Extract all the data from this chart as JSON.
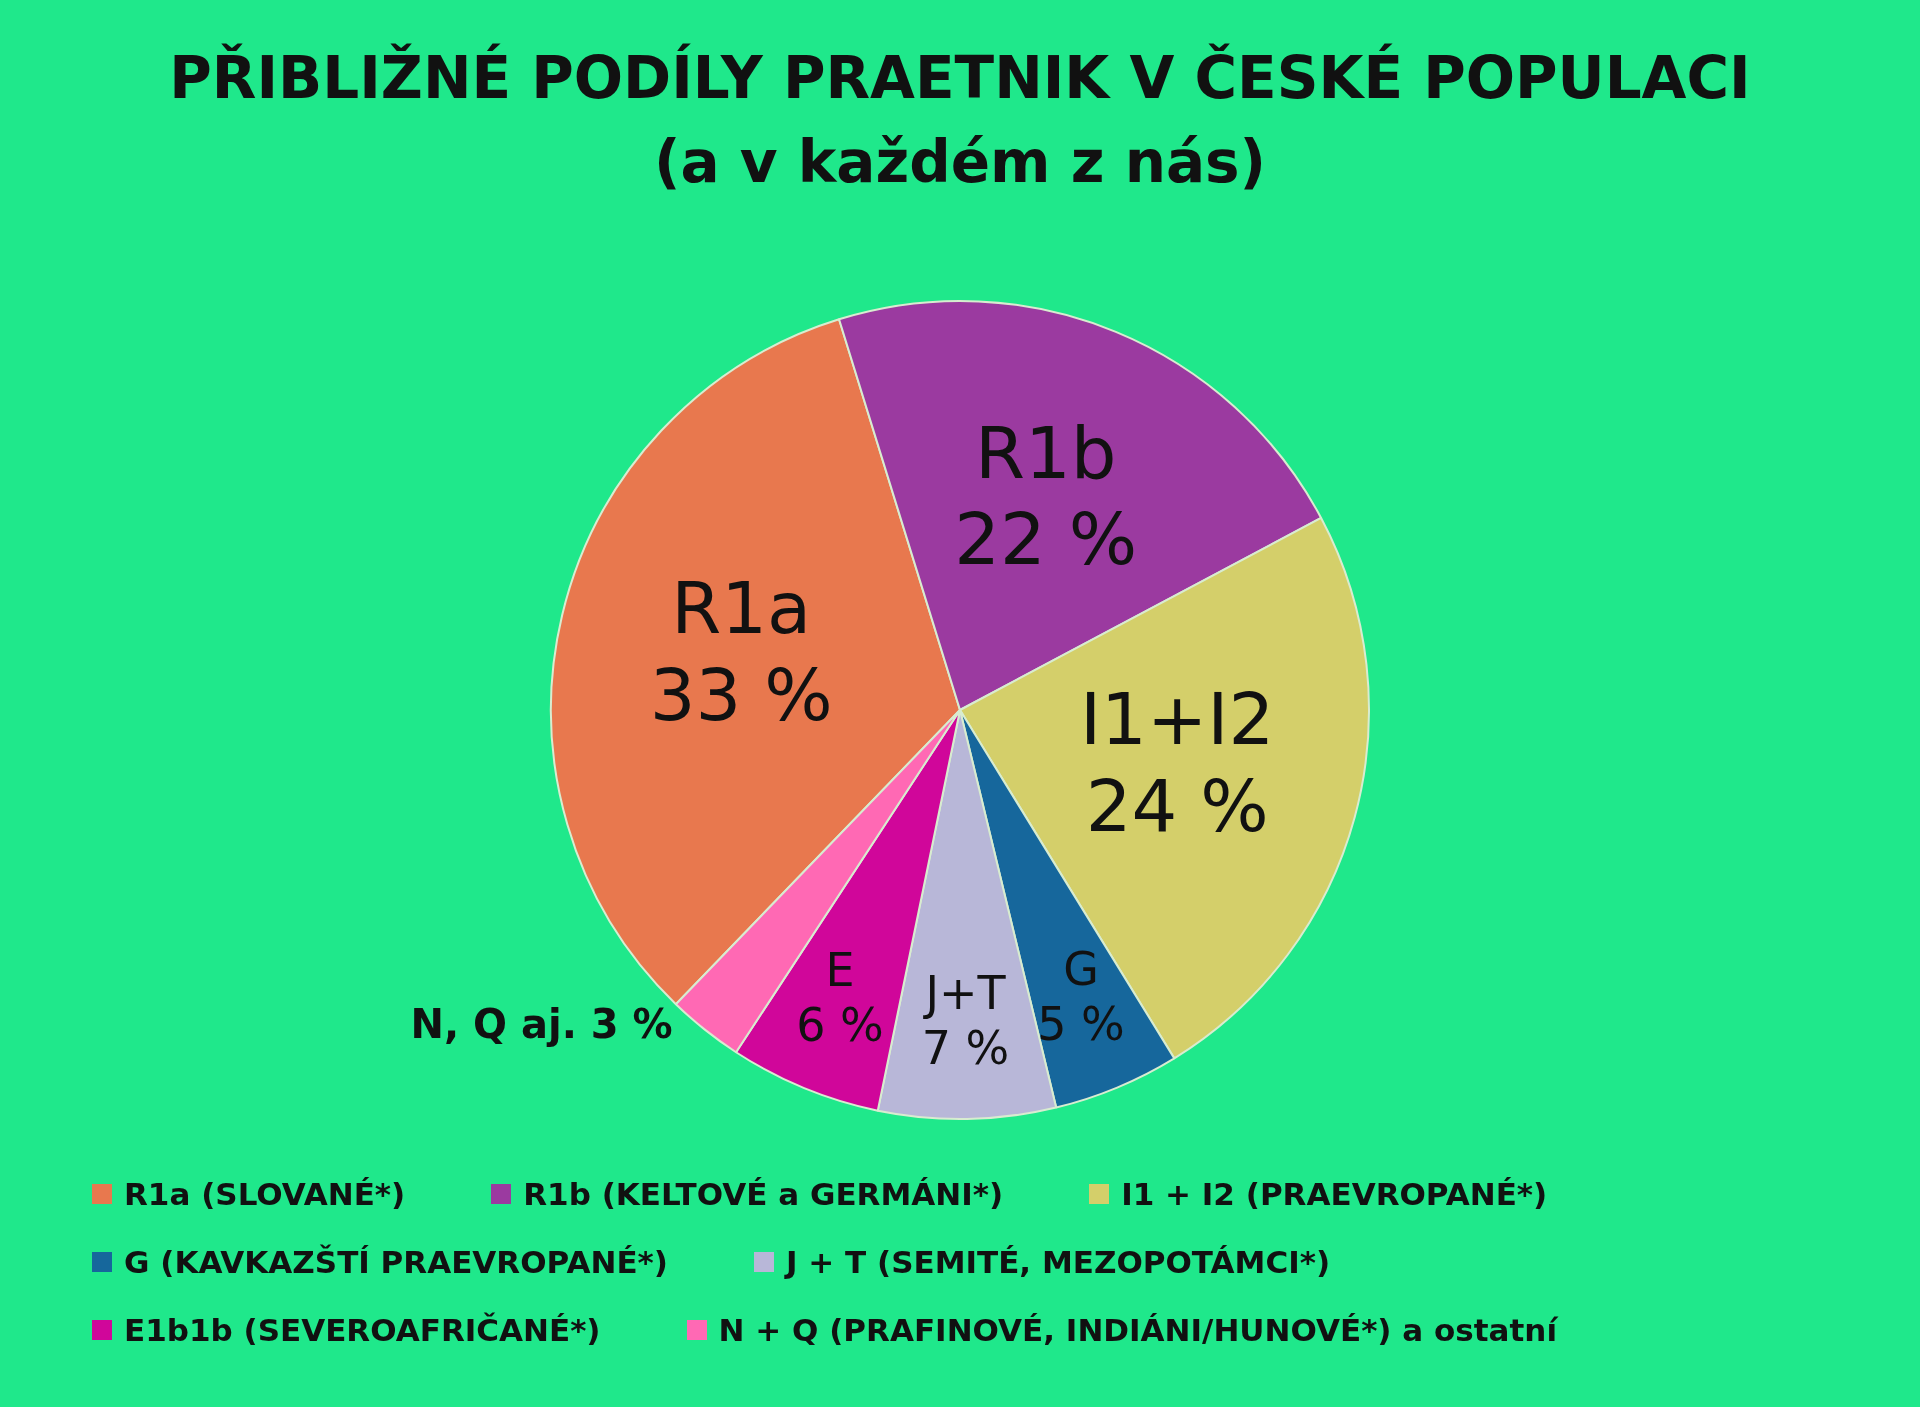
{
  "chart_data": {
    "type": "pie",
    "title": "PŘIBLIŽNÉ PODÍLY PRAETNIK V ČESKÉ POPULACI\n(a v každém z nás)",
    "categories": [
      "R1a (SLOVANÉ*)",
      "R1b (KELTOVÉ a GERMÁNI*)",
      "I1 + I2 (PRAEVROPANÉ*)",
      "G (KAVKAZŠTÍ PRAEVROPANÉ*)",
      "J + T (SEMITÉ, MEZOPOTÁMCI*)",
      "E1b1b (SEVEROAFRIČANÉ*)",
      "N + Q (PRAFINOVÉ, INDIÁNI/HUNOVÉ*) a ostatní"
    ],
    "values": [
      33,
      22,
      24,
      5,
      7,
      6,
      3
    ],
    "colors": [
      "#e8784e",
      "#9b3aa0",
      "#d4cf6a",
      "#16679c",
      "#b8b7d8",
      "#d0069a",
      "#ff69b4"
    ],
    "value_labels": [
      "R1a\n33 %",
      "R1b\n22 %",
      "I1+I2\n24 %",
      "G\n5 %",
      "J+T\n7 %",
      "E\n6 %",
      "N, Q aj. 3 %"
    ],
    "legend": "bottom"
  }
}
